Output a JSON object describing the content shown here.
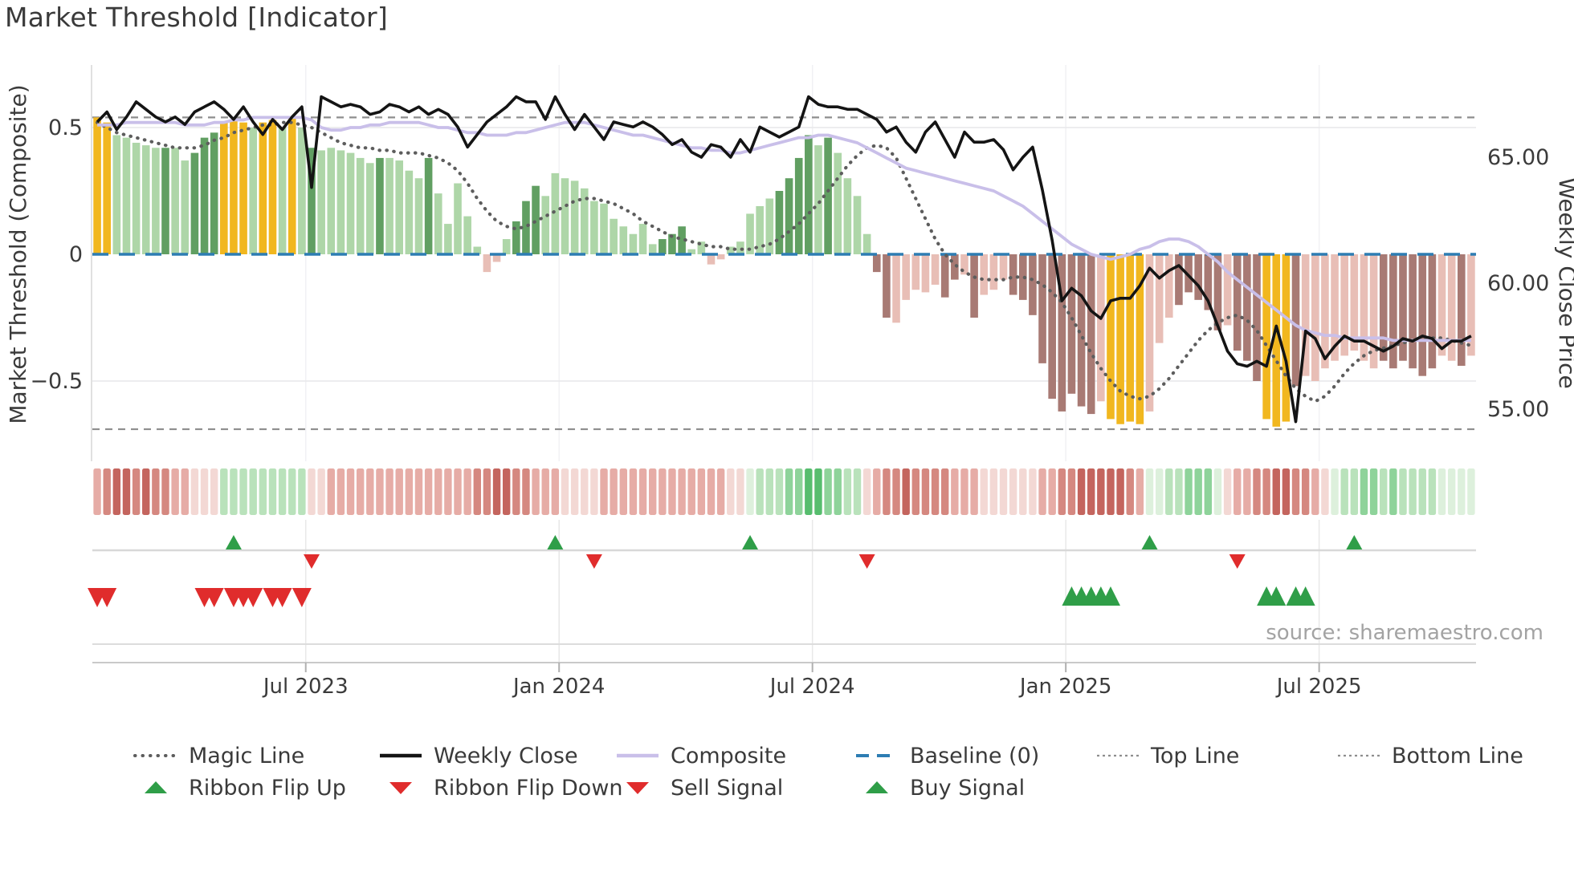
{
  "title": "Market Threshold [Indicator]",
  "source": "source: sharemaestro.com",
  "legend": {
    "items": [
      {
        "label": "Magic Line",
        "swatch": "dotted-gray",
        "row": 0,
        "col": 0
      },
      {
        "label": "Weekly Close",
        "swatch": "solid-black",
        "row": 0,
        "col": 1
      },
      {
        "label": "Composite",
        "swatch": "solid-lavender",
        "row": 0,
        "col": 2
      },
      {
        "label": "Baseline (0)",
        "swatch": "dashed-blue",
        "row": 0,
        "col": 3
      },
      {
        "label": "Top Line",
        "swatch": "dotted-gray-fine",
        "row": 0,
        "col": 4
      },
      {
        "label": "Bottom Line",
        "swatch": "dotted-gray-fine",
        "row": 0,
        "col": 5
      },
      {
        "label": "Ribbon Flip Up",
        "swatch": "triangle-up-green",
        "row": 1,
        "col": 0
      },
      {
        "label": "Ribbon Flip Down",
        "swatch": "triangle-down-red",
        "row": 1,
        "col": 1
      },
      {
        "label": "Sell Signal",
        "swatch": "triangle-down-red",
        "row": 1,
        "col": 2
      },
      {
        "label": "Buy Signal",
        "swatch": "triangle-up-green",
        "row": 1,
        "col": 3
      }
    ]
  },
  "chart_data": {
    "type": "bar+line composite indicator with signal lanes and color ribbon",
    "axes": {
      "left": {
        "label": "Market Threshold (Composite)",
        "ticks": [
          "0.5",
          "0",
          "−0.5"
        ],
        "tick_values": [
          0.5,
          0,
          -0.5
        ],
        "range": [
          -0.8,
          0.75
        ]
      },
      "right": {
        "label": "Weekly Close Price",
        "ticks": [
          "65.00",
          "60.00",
          "55.00"
        ],
        "tick_values": [
          65,
          60,
          55
        ],
        "range": [
          52.9,
          68.7
        ]
      },
      "x": {
        "ticks": [
          "Jul 2023",
          "Jan 2024",
          "Jul 2024",
          "Jan 2025",
          "Jul 2025"
        ],
        "tick_weeks": [
          21.4,
          47.4,
          73.4,
          99.4,
          125.4
        ]
      }
    },
    "top_line": 0.54,
    "bottom_line": -0.69,
    "baseline": 0,
    "bars": {
      "name": "Market Threshold (Composite)",
      "values": [
        0.54,
        0.52,
        0.47,
        0.46,
        0.44,
        0.43,
        0.42,
        0.42,
        0.42,
        0.37,
        0.4,
        0.46,
        0.48,
        0.52,
        0.53,
        0.52,
        0.5,
        0.52,
        0.53,
        0.5,
        0.54,
        0.5,
        0.42,
        0.41,
        0.42,
        0.41,
        0.4,
        0.38,
        0.36,
        0.38,
        0.38,
        0.37,
        0.33,
        0.3,
        0.38,
        0.24,
        0.12,
        0.28,
        0.15,
        0.03,
        -0.07,
        -0.03,
        0.06,
        0.13,
        0.21,
        0.27,
        0.23,
        0.32,
        0.3,
        0.29,
        0.26,
        0.21,
        0.2,
        0.14,
        0.11,
        0.08,
        0.12,
        0.04,
        0.06,
        0.08,
        0.11,
        0.02,
        0.05,
        -0.04,
        -0.02,
        0.03,
        0.05,
        0.16,
        0.19,
        0.22,
        0.25,
        0.3,
        0.38,
        0.47,
        0.43,
        0.46,
        0.4,
        0.3,
        0.23,
        0.08,
        -0.07,
        -0.25,
        -0.27,
        -0.18,
        -0.14,
        -0.15,
        -0.12,
        -0.17,
        -0.1,
        -0.08,
        -0.25,
        -0.16,
        -0.14,
        -0.1,
        -0.16,
        -0.18,
        -0.24,
        -0.43,
        -0.57,
        -0.62,
        -0.55,
        -0.6,
        -0.63,
        -0.58,
        -0.65,
        -0.67,
        -0.66,
        -0.67,
        -0.62,
        -0.35,
        -0.25,
        -0.2,
        -0.15,
        -0.18,
        -0.22,
        -0.3,
        -0.28,
        -0.38,
        -0.42,
        -0.5,
        -0.65,
        -0.68,
        -0.66,
        -0.52,
        -0.48,
        -0.5,
        -0.45,
        -0.42,
        -0.4,
        -0.38,
        -0.42,
        -0.45,
        -0.42,
        -0.45,
        -0.42,
        -0.45,
        -0.48,
        -0.45,
        -0.4,
        -0.42,
        -0.44,
        -0.4
      ],
      "classes": [
        "y",
        "y",
        "gl",
        "gl",
        "gl",
        "gl",
        "gl",
        "gd",
        "gl",
        "gl",
        "gd",
        "gd",
        "gd",
        "y",
        "y",
        "y",
        "gl",
        "y",
        "y",
        "gl",
        "y",
        "gl",
        "gd",
        "gl",
        "gl",
        "gl",
        "gl",
        "gl",
        "gl",
        "gd",
        "gl",
        "gl",
        "gl",
        "gl",
        "gd",
        "gl",
        "gl",
        "gl",
        "gl",
        "gl",
        "pl",
        "pl",
        "gl",
        "gd",
        "gd",
        "gd",
        "gl",
        "gl",
        "gl",
        "gl",
        "gl",
        "gl",
        "gl",
        "gl",
        "gl",
        "gl",
        "gl",
        "gl",
        "gd",
        "gd",
        "gd",
        "gl",
        "gl",
        "pl",
        "pl",
        "gl",
        "gl",
        "gl",
        "gl",
        "gl",
        "gd",
        "gd",
        "gd",
        "gd",
        "gl",
        "gd",
        "gl",
        "gl",
        "gl",
        "gl",
        "pd",
        "pd",
        "pl",
        "pl",
        "pl",
        "pl",
        "pl",
        "pd",
        "pd",
        "pl",
        "pd",
        "pl",
        "pl",
        "pl",
        "pd",
        "pd",
        "pd",
        "pd",
        "pd",
        "pd",
        "pd",
        "pd",
        "pd",
        "pl",
        "y",
        "y",
        "y",
        "y",
        "pl",
        "pl",
        "pl",
        "pd",
        "pd",
        "pd",
        "pd",
        "pd",
        "pl",
        "pd",
        "pd",
        "pd",
        "y",
        "y",
        "y",
        "pd",
        "pl",
        "pl",
        "pl",
        "pl",
        "pl",
        "pl",
        "pl",
        "pl",
        "pd",
        "pd",
        "pd",
        "pd",
        "pd",
        "pd",
        "pl",
        "pl",
        "pd",
        "pl"
      ]
    },
    "weekly_close": [
      66.4,
      66.8,
      66.1,
      66.6,
      67.2,
      66.9,
      66.6,
      66.4,
      66.6,
      66.3,
      66.8,
      67.0,
      67.2,
      66.9,
      66.5,
      67.0,
      66.4,
      65.9,
      66.5,
      66.1,
      66.6,
      67.0,
      63.8,
      67.4,
      67.2,
      67.0,
      67.1,
      67.0,
      66.7,
      66.8,
      67.1,
      67.0,
      66.8,
      67.0,
      66.7,
      66.9,
      66.7,
      66.2,
      65.4,
      65.9,
      66.4,
      66.7,
      67.0,
      67.4,
      67.2,
      67.2,
      66.5,
      67.4,
      66.7,
      66.1,
      66.7,
      66.2,
      65.7,
      66.4,
      66.3,
      66.2,
      66.4,
      66.2,
      65.9,
      65.5,
      65.7,
      65.2,
      65.0,
      65.5,
      65.4,
      65.0,
      65.7,
      65.2,
      66.2,
      66.0,
      65.8,
      66.0,
      66.2,
      67.4,
      67.1,
      67.0,
      67.0,
      66.9,
      66.9,
      66.7,
      66.5,
      66.0,
      66.2,
      65.6,
      65.2,
      66.0,
      66.4,
      65.7,
      65.0,
      66.0,
      65.6,
      65.6,
      65.7,
      65.3,
      64.5,
      65.0,
      65.4,
      63.7,
      61.7,
      59.3,
      59.8,
      59.5,
      58.9,
      58.6,
      59.3,
      59.4,
      59.4,
      59.9,
      60.6,
      60.2,
      60.5,
      60.7,
      60.3,
      59.9,
      59.3,
      58.3,
      57.3,
      56.8,
      56.7,
      56.9,
      56.7,
      58.3,
      56.9,
      54.5,
      58.1,
      57.8,
      57.0,
      57.5,
      57.9,
      57.7,
      57.7,
      57.5,
      57.3,
      57.5,
      57.8,
      57.7,
      57.9,
      57.8,
      57.4,
      57.7,
      57.7,
      57.9
    ],
    "composite": [
      0.51,
      0.51,
      0.51,
      0.52,
      0.52,
      0.52,
      0.52,
      0.52,
      0.52,
      0.51,
      0.51,
      0.51,
      0.52,
      0.52,
      0.53,
      0.53,
      0.54,
      0.54,
      0.54,
      0.54,
      0.54,
      0.54,
      0.53,
      0.5,
      0.49,
      0.49,
      0.5,
      0.5,
      0.51,
      0.51,
      0.52,
      0.52,
      0.52,
      0.52,
      0.51,
      0.5,
      0.5,
      0.49,
      0.48,
      0.48,
      0.47,
      0.47,
      0.47,
      0.48,
      0.48,
      0.49,
      0.5,
      0.51,
      0.52,
      0.52,
      0.52,
      0.51,
      0.5,
      0.49,
      0.48,
      0.47,
      0.47,
      0.46,
      0.45,
      0.44,
      0.43,
      0.42,
      0.42,
      0.41,
      0.41,
      0.4,
      0.4,
      0.41,
      0.42,
      0.43,
      0.44,
      0.45,
      0.46,
      0.46,
      0.47,
      0.47,
      0.46,
      0.45,
      0.44,
      0.42,
      0.4,
      0.38,
      0.36,
      0.34,
      0.33,
      0.32,
      0.31,
      0.3,
      0.29,
      0.28,
      0.27,
      0.26,
      0.25,
      0.23,
      0.21,
      0.19,
      0.16,
      0.13,
      0.1,
      0.07,
      0.04,
      0.02,
      0.0,
      -0.01,
      -0.02,
      -0.01,
      0.0,
      0.02,
      0.03,
      0.05,
      0.06,
      0.06,
      0.05,
      0.03,
      0.0,
      -0.03,
      -0.07,
      -0.1,
      -0.13,
      -0.16,
      -0.19,
      -0.22,
      -0.25,
      -0.28,
      -0.3,
      -0.31,
      -0.32,
      -0.32,
      -0.33,
      -0.33,
      -0.33,
      -0.33,
      -0.33,
      -0.34,
      -0.34,
      -0.34,
      -0.34,
      -0.34,
      -0.34,
      -0.34,
      -0.34,
      -0.34
    ],
    "magic_line": [
      0.52,
      0.5,
      0.48,
      0.47,
      0.46,
      0.45,
      0.44,
      0.43,
      0.42,
      0.42,
      0.42,
      0.43,
      0.45,
      0.46,
      0.48,
      0.49,
      0.5,
      0.51,
      0.51,
      0.52,
      0.52,
      0.51,
      0.5,
      0.48,
      0.46,
      0.44,
      0.43,
      0.42,
      0.42,
      0.41,
      0.41,
      0.4,
      0.4,
      0.4,
      0.39,
      0.38,
      0.36,
      0.33,
      0.28,
      0.22,
      0.17,
      0.13,
      0.11,
      0.1,
      0.11,
      0.13,
      0.15,
      0.17,
      0.19,
      0.21,
      0.22,
      0.22,
      0.21,
      0.2,
      0.18,
      0.16,
      0.13,
      0.11,
      0.09,
      0.07,
      0.06,
      0.05,
      0.04,
      0.03,
      0.03,
      0.02,
      0.02,
      0.02,
      0.03,
      0.04,
      0.06,
      0.09,
      0.12,
      0.16,
      0.2,
      0.25,
      0.3,
      0.35,
      0.39,
      0.42,
      0.43,
      0.42,
      0.38,
      0.3,
      0.22,
      0.14,
      0.06,
      0.0,
      -0.04,
      -0.07,
      -0.09,
      -0.1,
      -0.1,
      -0.1,
      -0.09,
      -0.09,
      -0.1,
      -0.12,
      -0.15,
      -0.19,
      -0.25,
      -0.32,
      -0.39,
      -0.45,
      -0.5,
      -0.54,
      -0.56,
      -0.57,
      -0.56,
      -0.53,
      -0.49,
      -0.44,
      -0.39,
      -0.34,
      -0.3,
      -0.27,
      -0.25,
      -0.24,
      -0.26,
      -0.3,
      -0.36,
      -0.42,
      -0.48,
      -0.53,
      -0.56,
      -0.58,
      -0.56,
      -0.52,
      -0.47,
      -0.43,
      -0.4,
      -0.38,
      -0.37,
      -0.36,
      -0.35,
      -0.34,
      -0.33,
      -0.33,
      -0.33,
      -0.34,
      -0.35,
      -0.36
    ],
    "ribbon": [
      "r1",
      "r2",
      "r3",
      "r3",
      "r2",
      "r3",
      "r2",
      "r2",
      "r1",
      "r1",
      "r0",
      "r0",
      "r0",
      "g1",
      "g1",
      "g1",
      "g1",
      "g1",
      "g1",
      "g1",
      "g1",
      "g1",
      "r0",
      "r0",
      "r1",
      "r1",
      "r1",
      "r1",
      "r1",
      "r1",
      "r1",
      "r1",
      "r1",
      "r1",
      "r1",
      "r1",
      "r1",
      "r1",
      "r1",
      "r2",
      "r2",
      "r3",
      "r3",
      "r2",
      "r2",
      "r1",
      "r1",
      "r1",
      "r0",
      "r0",
      "r0",
      "r0",
      "r1",
      "r1",
      "r1",
      "r1",
      "r1",
      "r1",
      "r1",
      "r1",
      "r1",
      "r1",
      "r1",
      "r1",
      "r1",
      "r0",
      "r0",
      "g0",
      "g1",
      "g1",
      "g1",
      "g2",
      "g2",
      "g3",
      "g3",
      "g2",
      "g2",
      "g1",
      "g1",
      "r0",
      "r1",
      "r2",
      "r2",
      "r3",
      "r2",
      "r2",
      "r2",
      "r2",
      "r1",
      "r1",
      "r1",
      "r0",
      "r0",
      "r0",
      "r0",
      "r0",
      "r0",
      "r1",
      "r1",
      "r2",
      "r2",
      "r3",
      "r3",
      "r3",
      "r3",
      "r3",
      "r2",
      "r1",
      "g0",
      "g0",
      "g1",
      "g1",
      "g2",
      "g2",
      "g2",
      "g0",
      "r0",
      "r1",
      "r1",
      "r2",
      "r2",
      "r3",
      "r3",
      "r2",
      "r2",
      "r1",
      "r0",
      "g0",
      "g1",
      "g1",
      "g2",
      "g2",
      "g1",
      "g2",
      "g1",
      "g1",
      "g1",
      "g1",
      "g0",
      "g0",
      "g0",
      "g0"
    ],
    "signals": {
      "ribbon_flip_up_weeks": [
        14,
        47,
        67,
        108,
        129
      ],
      "ribbon_flip_down_weeks": [
        22,
        51,
        79,
        117
      ],
      "sell_signal_weeks": [
        0,
        1,
        11,
        12,
        14,
        15,
        16,
        18,
        19,
        21
      ],
      "buy_signal_weeks": [
        100,
        101,
        102,
        103,
        104,
        120,
        121,
        123,
        124
      ]
    },
    "colors": {
      "bar": {
        "y": "#f1b71f",
        "gl": "#aed6a8",
        "gd": "#619f62",
        "pl": "#e8beb6",
        "pd": "#a87a74"
      },
      "ribbon": {
        "r0": "#f3d8d4",
        "r1": "#e6aca6",
        "r2": "#d58880",
        "r3": "#c4655e",
        "g0": "#ddf0dc",
        "g1": "#b9e2bb",
        "g2": "#8ed39a",
        "g3": "#57bd6e"
      },
      "weekly_close": "#141414",
      "composite": "#c9bfe9",
      "magic_line": "#5d5d5d",
      "baseline": "#2d7db3",
      "guide_lines": "#8e8e8e",
      "signal_green": "#2f9e48",
      "signal_red": "#e02c2c"
    }
  }
}
